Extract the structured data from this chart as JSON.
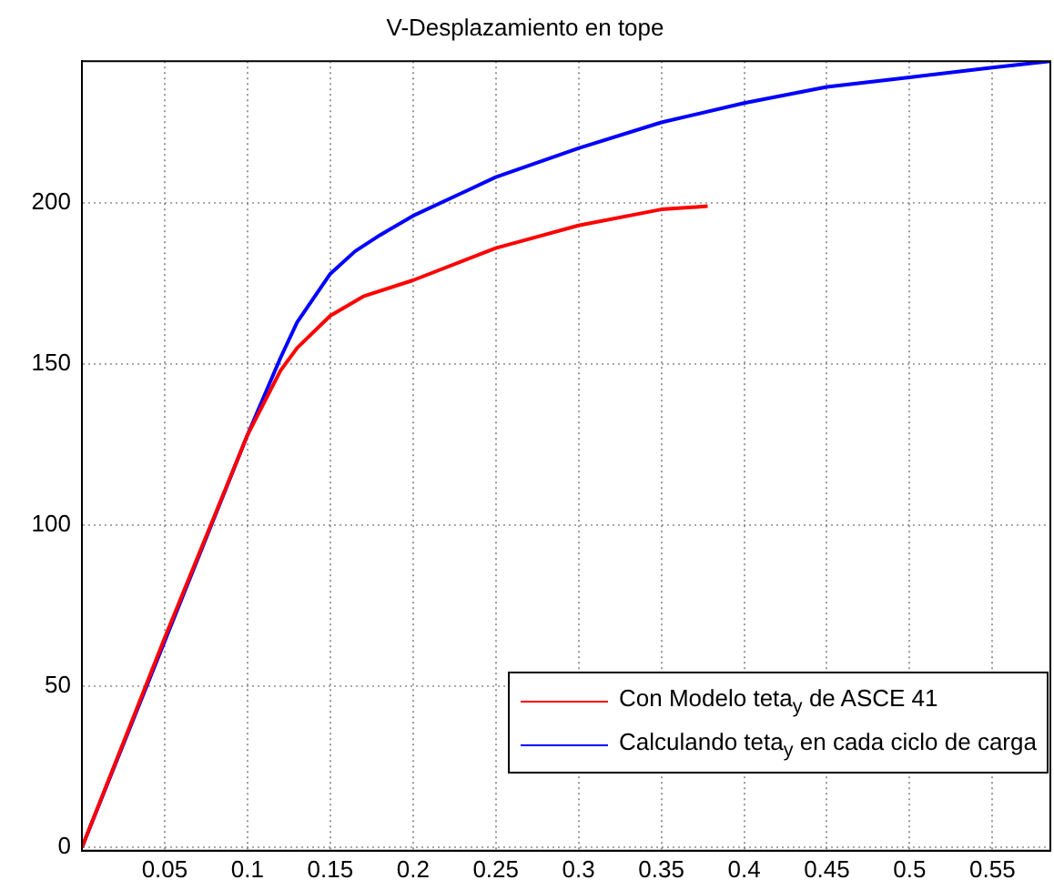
{
  "chart_data": {
    "type": "line",
    "title": "V-Desplazamiento en tope",
    "xlim": [
      0,
      0.585
    ],
    "xticks": [
      0.05,
      0.1,
      0.15,
      0.2,
      0.25,
      0.3,
      0.35,
      0.4,
      0.45,
      0.5,
      0.55
    ],
    "ylim": [
      -1,
      244
    ],
    "yticks": [
      0,
      50,
      100,
      150,
      200
    ],
    "grid": true,
    "legend": "bottom right",
    "marker": "none",
    "line_style": "solid",
    "series": [
      {
        "name": "Con Modelo teta$_{y}$ de ASCE 41",
        "color": "#ff0000",
        "x": [
          0,
          0.05,
          0.1,
          0.12,
          0.13,
          0.15,
          0.17,
          0.2,
          0.25,
          0.3,
          0.35,
          0.378
        ],
        "values": [
          0,
          65,
          128,
          148,
          155,
          165,
          171,
          176,
          186,
          193,
          198,
          199
        ]
      },
      {
        "name": "Calculando teta$_{y}$ en cada ciclo de carga",
        "color": "#0000ff",
        "x": [
          0,
          0.1,
          0.12,
          0.13,
          0.15,
          0.165,
          0.18,
          0.2,
          0.25,
          0.3,
          0.35,
          0.4,
          0.45,
          0.5,
          0.55,
          0.585
        ],
        "values": [
          0,
          128,
          152,
          163,
          178,
          185,
          190,
          196,
          208,
          217,
          225,
          231,
          236,
          239,
          242,
          244
        ]
      }
    ]
  }
}
